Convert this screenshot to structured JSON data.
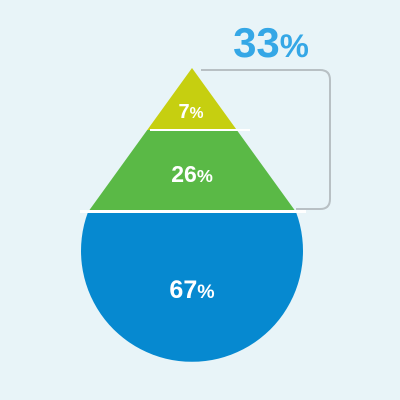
{
  "chart_data": {
    "type": "drop-stacked",
    "segments": [
      {
        "key": "top",
        "value": 7,
        "label": "7",
        "unit": "%",
        "color": "#c6cf10"
      },
      {
        "key": "middle",
        "value": 26,
        "label": "26",
        "unit": "%",
        "color": "#5ab946"
      },
      {
        "key": "bottom",
        "value": 67,
        "label": "67",
        "unit": "%",
        "color": "#0689d0"
      }
    ],
    "bracket_total": {
      "value": 33,
      "label": "33",
      "unit": "%",
      "color": "#35a7e6"
    },
    "bracket_color": "#b8c0c4",
    "divider_color": "#ffffff"
  }
}
